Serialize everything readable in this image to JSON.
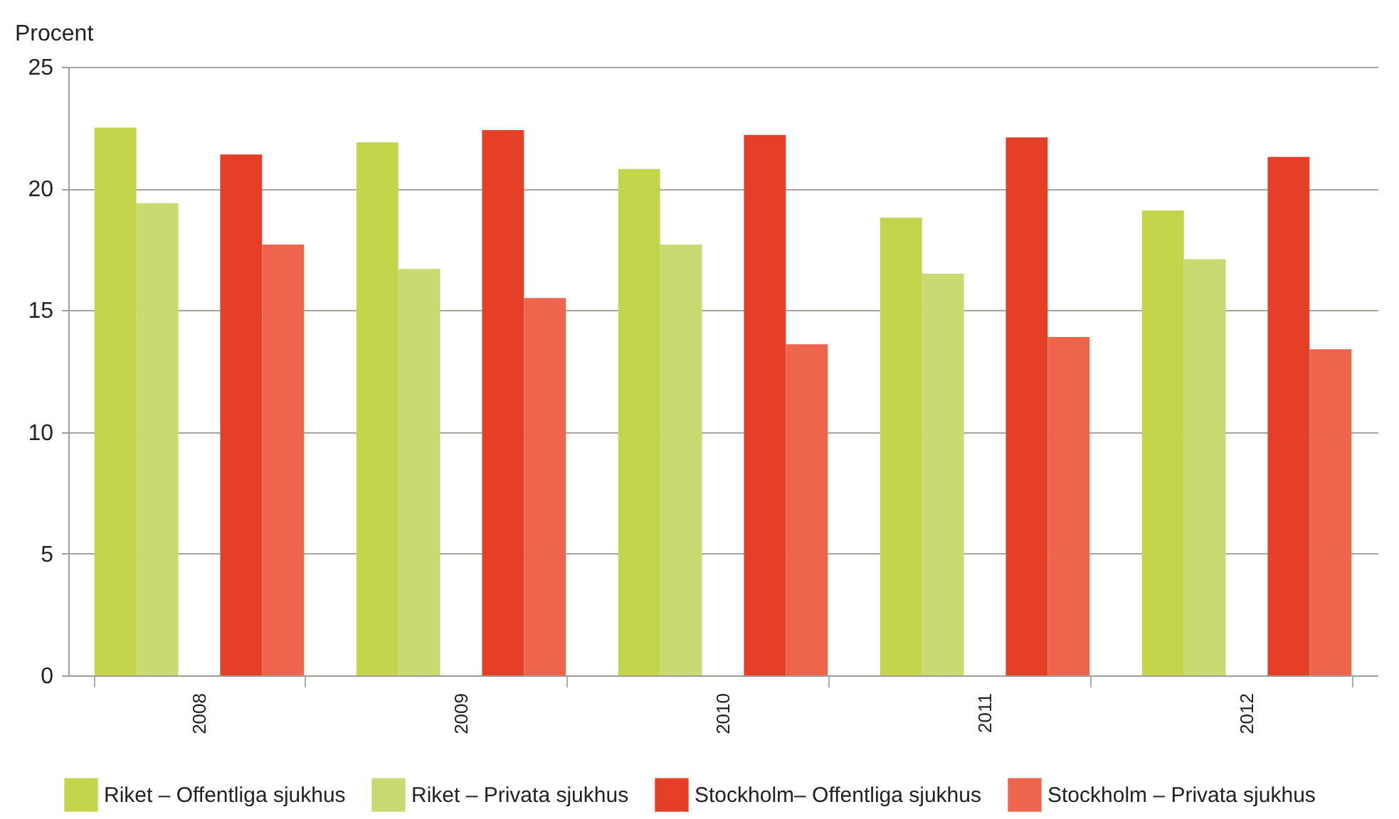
{
  "chart_data": {
    "type": "bar",
    "ylabel": "Procent",
    "categories": [
      "2008",
      "2009",
      "2010",
      "2011",
      "2012"
    ],
    "series": [
      {
        "name": "Riket – Offentliga sjukhus",
        "color": "#c3d54b",
        "values": [
          22.5,
          21.9,
          20.8,
          18.8,
          19.1
        ]
      },
      {
        "name": "Riket – Privata sjukhus",
        "color": "#c9da72",
        "values": [
          19.4,
          16.7,
          17.7,
          16.5,
          17.1
        ]
      },
      {
        "name": "Stockholm– Offentliga sjukhus",
        "color": "#e53f28",
        "values": [
          21.4,
          22.4,
          22.2,
          22.1,
          21.3
        ]
      },
      {
        "name": "Stockholm – Privata sjukhus",
        "color": "#ee654d",
        "values": [
          17.7,
          15.5,
          13.6,
          13.9,
          13.4
        ]
      }
    ],
    "ylim": [
      0,
      25
    ],
    "yticks": [
      0,
      5,
      10,
      15,
      20,
      25
    ],
    "grid": "y",
    "legend": "bottom"
  }
}
